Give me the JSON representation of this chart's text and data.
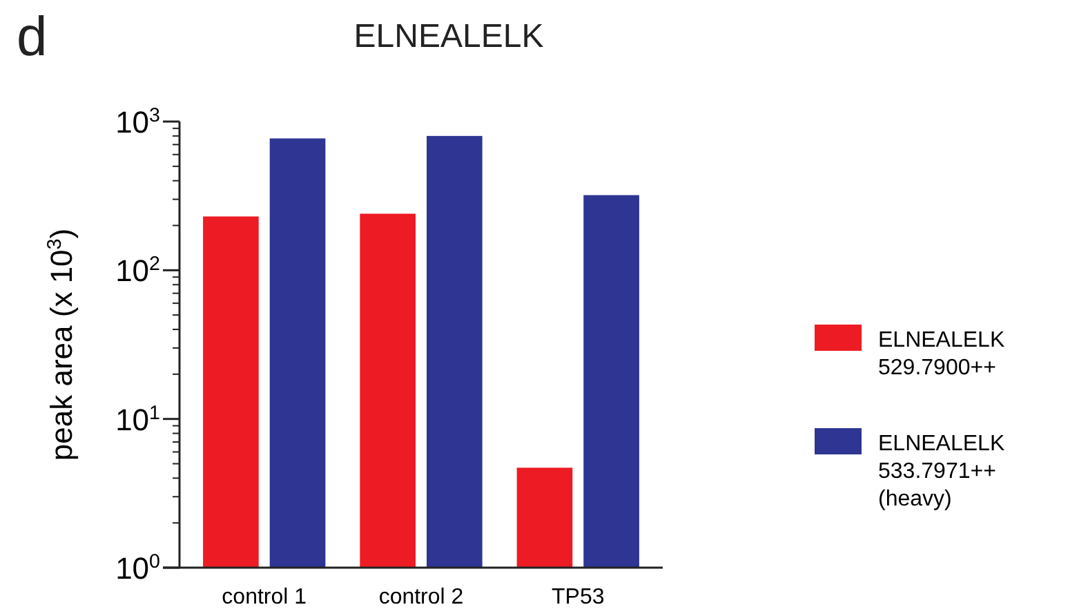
{
  "chart_data": {
    "type": "bar",
    "title": "ELNEALELK",
    "ylabel": "peak area (x 10$^{3}$)",
    "annotations": [
      "d"
    ],
    "categories": [
      "control 1",
      "control 2",
      "TP53"
    ],
    "series": [
      {
        "name": "ELNEALELK\n529.7900++",
        "color": "#ed1c24",
        "values": [
          230,
          240,
          4.7
        ]
      },
      {
        "name": "ELNEALELK\n533.7971++\n(heavy)",
        "color": "#2e3592",
        "values": [
          770,
          800,
          320
        ]
      }
    ],
    "log": true,
    "ylim": [
      1,
      1000
    ],
    "yticks": [
      {
        "value": 1,
        "label": "10$^{0}$"
      },
      {
        "value": 10,
        "label": "10$^{1}$"
      },
      {
        "value": 100,
        "label": "10$^{2}$"
      },
      {
        "value": 1000,
        "label": "10$^{3}$"
      }
    ],
    "legend": "right",
    "grid": false
  }
}
